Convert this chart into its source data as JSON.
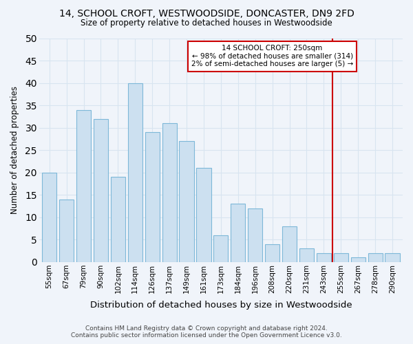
{
  "title": "14, SCHOOL CROFT, WESTWOODSIDE, DONCASTER, DN9 2FD",
  "subtitle": "Size of property relative to detached houses in Westwoodside",
  "xlabel": "Distribution of detached houses by size in Westwoodside",
  "ylabel": "Number of detached properties",
  "footer": "Contains HM Land Registry data © Crown copyright and database right 2024.\nContains public sector information licensed under the Open Government Licence v3.0.",
  "categories": [
    "55sqm",
    "67sqm",
    "79sqm",
    "90sqm",
    "102sqm",
    "114sqm",
    "126sqm",
    "137sqm",
    "149sqm",
    "161sqm",
    "173sqm",
    "184sqm",
    "196sqm",
    "208sqm",
    "220sqm",
    "231sqm",
    "243sqm",
    "255sqm",
    "267sqm",
    "278sqm",
    "290sqm"
  ],
  "values": [
    20,
    14,
    34,
    32,
    19,
    40,
    29,
    31,
    27,
    21,
    6,
    13,
    12,
    4,
    8,
    3,
    2,
    2,
    1,
    2,
    2
  ],
  "bar_color": "#cce0f0",
  "bar_edge_color": "#7db8d8",
  "bg_color": "#f0f4fa",
  "plot_bg_color": "#f0f4fa",
  "grid_color": "#d8e4f0",
  "annotation_line_label": "14 SCHOOL CROFT: 250sqm",
  "annotation_line1": "← 98% of detached houses are smaller (314)",
  "annotation_line2": "2% of semi-detached houses are larger (5) →",
  "annotation_box_color": "#ffffff",
  "annotation_border_color": "#cc0000",
  "vline_color": "#cc0000",
  "ylim": [
    0,
    50
  ],
  "yticks": [
    0,
    5,
    10,
    15,
    20,
    25,
    30,
    35,
    40,
    45,
    50
  ]
}
